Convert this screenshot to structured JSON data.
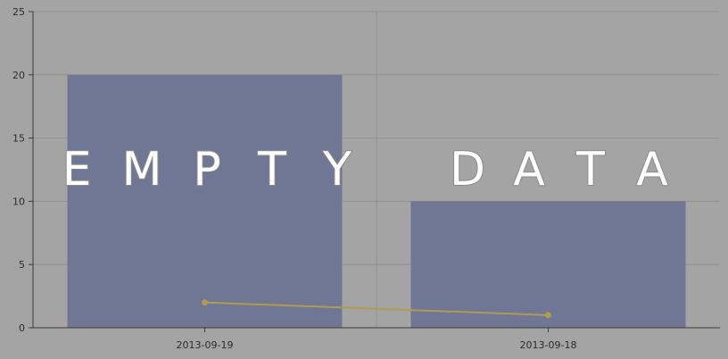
{
  "chart_data": {
    "type": "bar",
    "categories": [
      "2013-09-19",
      "2013-09-18"
    ],
    "series": [
      {
        "type": "bar",
        "values": [
          20,
          10
        ],
        "color": "#6f7794"
      },
      {
        "type": "line",
        "values": [
          2,
          1
        ],
        "color": "#b09a52"
      }
    ],
    "ylim": [
      0,
      25
    ],
    "yticks": [
      0,
      5,
      10,
      15,
      20,
      25
    ],
    "grid": true,
    "title": "",
    "xlabel": "",
    "ylabel": ""
  },
  "overlay": {
    "word1_letters": [
      "E",
      "M",
      "P",
      "T",
      "Y"
    ],
    "word2_letters": [
      "D",
      "A",
      "T",
      "A"
    ]
  },
  "colors": {
    "background": "#a4a4a4",
    "grid": "#8f8f8f",
    "axis": "#3a3a3a",
    "overlay_text": "#ffffff"
  }
}
